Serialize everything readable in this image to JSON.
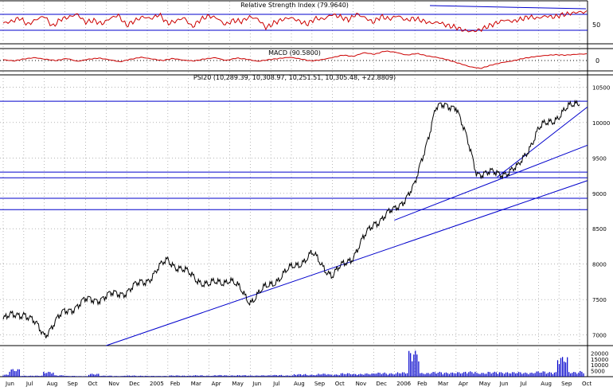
{
  "chart_data": [
    {
      "type": "line",
      "panel": "rsi",
      "title": "Relative Strength Index (79.9640)",
      "y_ticks": [
        "50"
      ],
      "guide_levels": [
        70,
        30
      ],
      "ylim": [
        0,
        100
      ],
      "color": "#cc0000",
      "samples": [
        48,
        52,
        61,
        44,
        57,
        66,
        39,
        58,
        63,
        71,
        50,
        55,
        46,
        60,
        68,
        42,
        54,
        64,
        59,
        70,
        47,
        53,
        62,
        38,
        57,
        66,
        61,
        44,
        55,
        52,
        64,
        58,
        36,
        49,
        57,
        62,
        53,
        45,
        60,
        58,
        70,
        64,
        56,
        71,
        62,
        50,
        65,
        58,
        67,
        55,
        60,
        54,
        48,
        50,
        42,
        38,
        30,
        27,
        31,
        40,
        48,
        56,
        52,
        58,
        64,
        60,
        66,
        63,
        69,
        72,
        76,
        75
      ]
    },
    {
      "type": "line",
      "panel": "macd",
      "title": "MACD (90.5800)",
      "y_ticks": [
        "0"
      ],
      "ylim": [
        -120,
        120
      ],
      "color": "#cc0000",
      "samples": [
        5,
        -10,
        15,
        30,
        10,
        -5,
        20,
        -15,
        10,
        25,
        5,
        -20,
        10,
        35,
        15,
        -5,
        20,
        0,
        -10,
        15,
        30,
        -5,
        25,
        10,
        -15,
        5,
        20,
        35,
        15,
        -10,
        5,
        30,
        60,
        45,
        90,
        70,
        110,
        95,
        60,
        80,
        50,
        30,
        0,
        -40,
        -80,
        -100,
        -60,
        -30,
        -10,
        20,
        40,
        55,
        65,
        60,
        70,
        75
      ]
    },
    {
      "type": "line",
      "panel": "price",
      "title": "PSI20 (10,289.39, 10,308.97, 10,251.51, 10,305.48, +22.8809)",
      "y_ticks": [
        "7000",
        "7500",
        "8000",
        "8500",
        "9000",
        "9500",
        "10000",
        "10500"
      ],
      "ylim": [
        6850,
        10650
      ],
      "color": "#000000",
      "x": [
        "Jun",
        "Jul",
        "Aug",
        "Sep",
        "Oct",
        "Nov",
        "Dec",
        "2005",
        "Feb",
        "Mar",
        "Apr",
        "May",
        "Jun",
        "Jul",
        "Aug",
        "Sep",
        "Oct",
        "Nov",
        "Dec",
        "2006",
        "Feb",
        "Mar",
        "Apr",
        "May",
        "Jun",
        "Jul",
        "Aug",
        "Sep",
        "Oct"
      ],
      "y": [
        7220,
        7320,
        7010,
        7330,
        7480,
        7540,
        7620,
        7780,
        8060,
        7860,
        7700,
        7790,
        7480,
        7720,
        7940,
        8140,
        7840,
        8120,
        8580,
        8760,
        9100,
        10200,
        10250,
        9300,
        9270,
        9350,
        9900,
        10100,
        10310
      ],
      "horizontal_lines": [
        10300,
        9300,
        9220,
        8930,
        8770
      ],
      "trendlines": [
        {
          "from": [
            "Nov",
            6850
          ],
          "to": [
            "Oct",
            9180
          ]
        },
        {
          "from": [
            "2006",
            8620
          ],
          "to": [
            "Oct",
            9680
          ]
        },
        {
          "from": [
            "Jun",
            9230
          ],
          "to": [
            "Oct",
            10220
          ]
        }
      ]
    },
    {
      "type": "bar",
      "panel": "volume",
      "y_ticks": [
        "20000",
        "15000",
        "10000",
        "5000"
      ],
      "ylim": [
        0,
        25000
      ],
      "color": "#0000cc",
      "samples": [
        1800,
        6500,
        800,
        900,
        4200,
        1200,
        700,
        500,
        2500,
        900,
        600,
        1000,
        800,
        700,
        650,
        1100,
        900,
        1200,
        900,
        1400,
        1100,
        1300,
        1000,
        1200,
        1500,
        1100,
        2200,
        1700,
        2600,
        1900,
        3000,
        2400,
        2800,
        3500,
        2900,
        3800,
        22000,
        3200,
        4100,
        3600,
        3900,
        4500,
        3300,
        4200,
        3800,
        4000,
        3500,
        4600,
        3900,
        17000,
        4100,
        4800
      ]
    }
  ],
  "x_axis_labels": [
    "Jun",
    "Jul",
    "Aug",
    "Sep",
    "Oct",
    "Nov",
    "Dec",
    "2005",
    "Feb",
    "Mar",
    "Apr",
    "May",
    "Jun",
    "Jul",
    "Aug",
    "Sep",
    "Oct",
    "Nov",
    "Dec",
    "2006",
    "Feb",
    "Mar",
    "Apr",
    "May",
    "Jun",
    "Jul",
    "Aug",
    "Sep",
    "Oct"
  ]
}
